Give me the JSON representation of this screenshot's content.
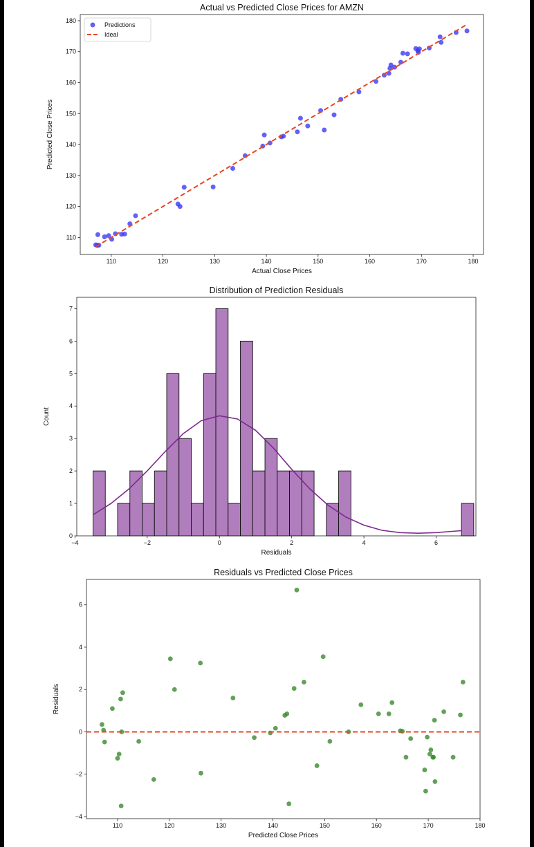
{
  "chart_data": [
    {
      "type": "scatter",
      "title": "Actual vs Predicted Close Prices for AMZN",
      "xlabel": "Actual Close Prices",
      "ylabel": "Predicted Close Prices",
      "xlim": [
        104,
        182
      ],
      "ylim": [
        104.5,
        182
      ],
      "xticks": [
        110,
        120,
        130,
        140,
        150,
        160,
        170,
        180
      ],
      "yticks": [
        110,
        120,
        130,
        140,
        150,
        160,
        170,
        180
      ],
      "legend_position": "top-left",
      "series": [
        {
          "name": "Predictions",
          "color": "#3b3bf5",
          "points": [
            [
              107.0,
              107.6
            ],
            [
              107.3,
              107.4
            ],
            [
              107.4,
              110.9
            ],
            [
              107.6,
              107.5
            ],
            [
              108.7,
              110.2
            ],
            [
              109.5,
              110.6
            ],
            [
              110.1,
              109.4
            ],
            [
              110.8,
              111.2
            ],
            [
              112.0,
              111.0
            ],
            [
              112.6,
              111.1
            ],
            [
              113.6,
              114.4
            ],
            [
              114.7,
              117.0
            ],
            [
              122.9,
              120.8
            ],
            [
              123.3,
              120.0
            ],
            [
              124.1,
              126.2
            ],
            [
              129.7,
              126.3
            ],
            [
              133.5,
              132.3
            ],
            [
              135.9,
              136.4
            ],
            [
              139.3,
              139.5
            ],
            [
              139.6,
              143.1
            ],
            [
              140.7,
              140.5
            ],
            [
              142.9,
              142.5
            ],
            [
              143.3,
              142.7
            ],
            [
              146.0,
              144.1
            ],
            [
              146.6,
              148.5
            ],
            [
              148.0,
              146.0
            ],
            [
              150.5,
              151.0
            ],
            [
              151.2,
              144.7
            ],
            [
              153.1,
              149.6
            ],
            [
              154.4,
              154.6
            ],
            [
              157.9,
              157.0
            ],
            [
              161.2,
              160.4
            ],
            [
              162.8,
              162.4
            ],
            [
              163.7,
              163.0
            ],
            [
              163.9,
              164.6
            ],
            [
              164.1,
              165.7
            ],
            [
              164.8,
              165.0
            ],
            [
              166.0,
              166.6
            ],
            [
              166.4,
              169.5
            ],
            [
              167.3,
              169.3
            ],
            [
              168.9,
              171.0
            ],
            [
              169.3,
              170.3
            ],
            [
              169.4,
              169.8
            ],
            [
              169.6,
              170.9
            ],
            [
              171.5,
              171.2
            ],
            [
              173.6,
              174.8
            ],
            [
              173.8,
              173.0
            ],
            [
              176.7,
              176.2
            ],
            [
              178.8,
              176.7
            ]
          ]
        },
        {
          "name": "Ideal",
          "color": "#e8471f",
          "line": [
            [
              107.0,
              107.0
            ],
            [
              178.8,
              178.8
            ]
          ]
        }
      ]
    },
    {
      "type": "histogram",
      "title": "Distribution of Prediction Residuals",
      "xlabel": "Residuals",
      "ylabel": "Count",
      "xlim": [
        -3.95,
        7.1
      ],
      "ylim": [
        0,
        7.35
      ],
      "xticks": [
        -4,
        -2,
        0,
        2,
        4,
        6
      ],
      "yticks": [
        0,
        1,
        2,
        3,
        4,
        5,
        6,
        7
      ],
      "bin_start": -3.5,
      "bin_width": 0.34,
      "bar_color": "#b07dbd",
      "counts": [
        2,
        0,
        1,
        2,
        1,
        2,
        5,
        3,
        1,
        5,
        7,
        1,
        6,
        2,
        3,
        2,
        2,
        2,
        0,
        1,
        2,
        0,
        0,
        0,
        0,
        0,
        0,
        0,
        0,
        0,
        1
      ],
      "kde_color": "#7d2a8e",
      "kde": [
        [
          -3.5,
          0.65
        ],
        [
          -3.0,
          1.0
        ],
        [
          -2.5,
          1.45
        ],
        [
          -2.0,
          2.0
        ],
        [
          -1.5,
          2.6
        ],
        [
          -1.0,
          3.15
        ],
        [
          -0.5,
          3.55
        ],
        [
          0.0,
          3.7
        ],
        [
          0.5,
          3.6
        ],
        [
          1.0,
          3.25
        ],
        [
          1.5,
          2.7
        ],
        [
          2.0,
          2.05
        ],
        [
          2.5,
          1.45
        ],
        [
          3.0,
          0.95
        ],
        [
          3.5,
          0.58
        ],
        [
          4.0,
          0.33
        ],
        [
          4.5,
          0.17
        ],
        [
          5.0,
          0.1
        ],
        [
          5.5,
          0.08
        ],
        [
          6.0,
          0.1
        ],
        [
          6.7,
          0.16
        ]
      ]
    },
    {
      "type": "scatter",
      "title": "Residuals vs Predicted Close Prices",
      "xlabel": "Predicted Close Prices",
      "ylabel": "Residuals",
      "xlim": [
        104,
        180
      ],
      "ylim": [
        -4.1,
        7.2
      ],
      "xticks": [
        110,
        120,
        130,
        140,
        150,
        160,
        170,
        180
      ],
      "yticks": [
        -4,
        -2,
        0,
        2,
        4,
        6
      ],
      "zero_line_color": "#e8471f",
      "series": [
        {
          "color": "#3b8a2e",
          "points": [
            [
              107.0,
              0.35
            ],
            [
              107.3,
              0.08
            ],
            [
              107.5,
              -0.48
            ],
            [
              109.0,
              1.1
            ],
            [
              110.0,
              -1.25
            ],
            [
              110.3,
              -1.05
            ],
            [
              110.6,
              1.55
            ],
            [
              110.7,
              -3.5
            ],
            [
              110.8,
              0.0
            ],
            [
              111.0,
              1.85
            ],
            [
              114.1,
              -0.45
            ],
            [
              117.0,
              -2.25
            ],
            [
              120.2,
              3.45
            ],
            [
              121.0,
              2.0
            ],
            [
              126.0,
              3.25
            ],
            [
              126.1,
              -1.95
            ],
            [
              132.3,
              1.6
            ],
            [
              136.4,
              -0.27
            ],
            [
              139.5,
              -0.05
            ],
            [
              140.5,
              0.17
            ],
            [
              142.3,
              0.78
            ],
            [
              142.7,
              0.85
            ],
            [
              143.1,
              -3.4
            ],
            [
              144.1,
              2.05
            ],
            [
              144.6,
              6.7
            ],
            [
              146.0,
              2.35
            ],
            [
              148.5,
              -1.6
            ],
            [
              149.7,
              3.55
            ],
            [
              151.0,
              -0.45
            ],
            [
              154.6,
              0.0
            ],
            [
              157.0,
              1.28
            ],
            [
              160.4,
              0.85
            ],
            [
              162.4,
              0.85
            ],
            [
              163.0,
              1.38
            ],
            [
              164.6,
              0.05
            ],
            [
              165.0,
              0.03
            ],
            [
              165.7,
              -1.2
            ],
            [
              166.6,
              -0.32
            ],
            [
              169.3,
              -1.8
            ],
            [
              169.5,
              -2.8
            ],
            [
              169.8,
              -0.25
            ],
            [
              170.3,
              -1.05
            ],
            [
              170.5,
              -0.85
            ],
            [
              170.9,
              -1.2
            ],
            [
              171.0,
              -1.2
            ],
            [
              171.2,
              0.55
            ],
            [
              171.3,
              -2.35
            ],
            [
              173.0,
              0.95
            ],
            [
              174.8,
              -1.2
            ],
            [
              176.2,
              0.8
            ],
            [
              176.7,
              2.35
            ]
          ]
        }
      ]
    }
  ],
  "footer_text": ""
}
